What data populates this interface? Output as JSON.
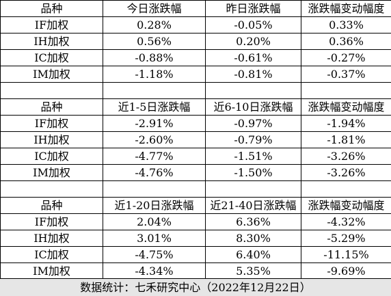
{
  "sections": [
    {
      "header": [
        "品种",
        "今日涨跌幅",
        "昨日涨跌幅",
        "涨跌幅变动幅度"
      ],
      "rows": [
        [
          "IF加权",
          "0.28%",
          "-0.05%",
          "0.33%"
        ],
        [
          "IH加权",
          "0.56%",
          "0.20%",
          "0.36%"
        ],
        [
          "IC加权",
          "-0.88%",
          "-0.61%",
          "-0.27%"
        ],
        [
          "IM加权",
          "-1.18%",
          "-0.81%",
          "-0.37%"
        ]
      ]
    },
    {
      "header": [
        "品种",
        "近1-5日涨跌幅",
        "近6-10日涨跌幅",
        "涨跌幅变动幅度"
      ],
      "rows": [
        [
          "IF加权",
          "-2.91%",
          "-0.97%",
          "-1.94%"
        ],
        [
          "IH加权",
          "-2.60%",
          "-0.79%",
          "-1.81%"
        ],
        [
          "IC加权",
          "-4.77%",
          "-1.51%",
          "-3.26%"
        ],
        [
          "IM加权",
          "-4.76%",
          "-1.50%",
          "-3.26%"
        ]
      ]
    },
    {
      "header": [
        "品种",
        "近1-20日涨跌幅",
        "近21-40日涨跌幅",
        "涨跌幅变动幅度"
      ],
      "rows": [
        [
          "IF加权",
          "2.04%",
          "6.36%",
          "-4.32%"
        ],
        [
          "IH加权",
          "3.01%",
          "8.30%",
          "-5.29%"
        ],
        [
          "IC加权",
          "-4.75%",
          "6.40%",
          "-11.15%"
        ],
        [
          "IM加权",
          "-4.34%",
          "5.35%",
          "-9.69%"
        ]
      ]
    }
  ],
  "footer": "数据统计：七禾研究中心（2022年12月22日）"
}
